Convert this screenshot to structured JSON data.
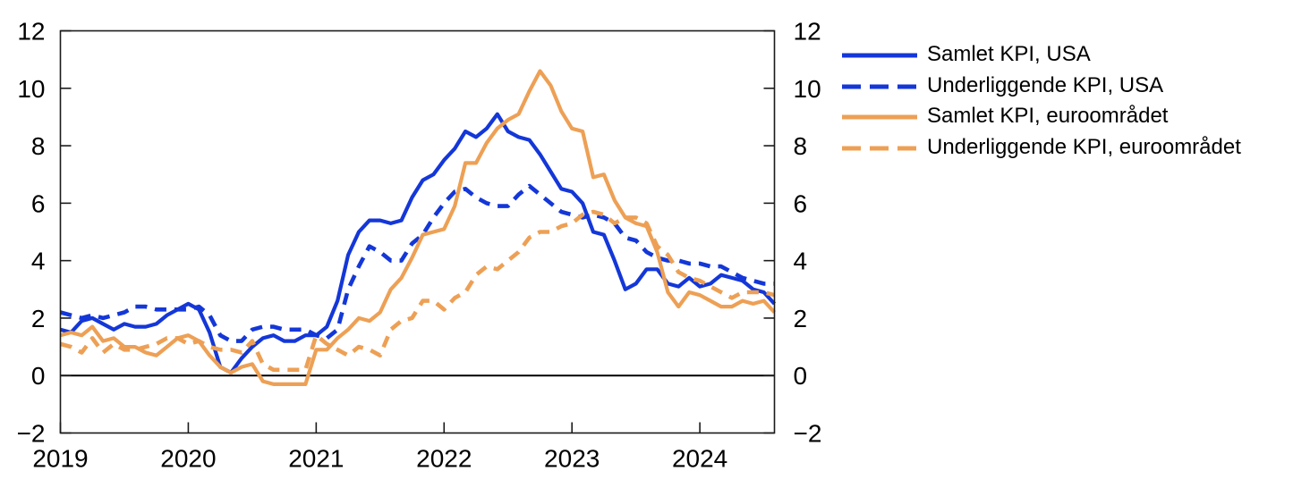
{
  "chart_data": {
    "type": "line",
    "title": "",
    "x_unit": "month",
    "x_start": "2019-01",
    "x_end": "2024-08",
    "x_tick_labels": [
      "2019",
      "2020",
      "2021",
      "2022",
      "2023",
      "2024"
    ],
    "x_tick_months": [
      0,
      12,
      24,
      36,
      48,
      60
    ],
    "ylim": [
      -2,
      12
    ],
    "y_ticks": [
      -2,
      0,
      2,
      4,
      6,
      8,
      10,
      12
    ],
    "y_axis_sides": [
      "left",
      "right"
    ],
    "zero_line": true,
    "grid": false,
    "legend_position": "right",
    "axis_color": "#1a1a1a",
    "text_color": "#000000",
    "series": [
      {
        "name": "Samlet KPI, USA",
        "color": "#1437d8",
        "dash": false,
        "values": [
          1.6,
          1.5,
          1.9,
          2.0,
          1.8,
          1.6,
          1.8,
          1.7,
          1.7,
          1.8,
          2.1,
          2.3,
          2.5,
          2.3,
          1.5,
          0.3,
          0.1,
          0.6,
          1.0,
          1.3,
          1.4,
          1.2,
          1.2,
          1.4,
          1.4,
          1.7,
          2.6,
          4.2,
          5.0,
          5.4,
          5.4,
          5.3,
          5.4,
          6.2,
          6.8,
          7.0,
          7.5,
          7.9,
          8.5,
          8.3,
          8.6,
          9.1,
          8.5,
          8.3,
          8.2,
          7.7,
          7.1,
          6.5,
          6.4,
          6.0,
          5.0,
          4.9,
          4.0,
          3.0,
          3.2,
          3.7,
          3.7,
          3.2,
          3.1,
          3.4,
          3.1,
          3.2,
          3.5,
          3.4,
          3.3,
          3.0,
          2.9,
          2.5
        ]
      },
      {
        "name": "Underliggende KPI, USA",
        "color": "#1437d8",
        "dash": true,
        "values": [
          2.2,
          2.1,
          2.0,
          2.1,
          2.0,
          2.1,
          2.2,
          2.4,
          2.4,
          2.3,
          2.3,
          2.3,
          2.3,
          2.4,
          2.1,
          1.4,
          1.2,
          1.2,
          1.6,
          1.7,
          1.7,
          1.6,
          1.6,
          1.6,
          1.4,
          1.3,
          1.6,
          3.0,
          3.8,
          4.5,
          4.3,
          4.0,
          4.0,
          4.6,
          4.9,
          5.5,
          6.0,
          6.4,
          6.5,
          6.2,
          6.0,
          5.9,
          5.9,
          6.3,
          6.6,
          6.3,
          6.0,
          5.7,
          5.6,
          5.5,
          5.6,
          5.5,
          5.3,
          4.8,
          4.7,
          4.3,
          4.1,
          4.0,
          4.0,
          3.9,
          3.9,
          3.8,
          3.8,
          3.6,
          3.4,
          3.3,
          3.2,
          3.2
        ]
      },
      {
        "name": "Samlet KPI, euroområdet",
        "color": "#eda055",
        "dash": false,
        "values": [
          1.4,
          1.5,
          1.4,
          1.7,
          1.2,
          1.3,
          1.0,
          1.0,
          0.8,
          0.7,
          1.0,
          1.3,
          1.4,
          1.2,
          0.7,
          0.3,
          0.1,
          0.3,
          0.4,
          -0.2,
          -0.3,
          -0.3,
          -0.3,
          -0.3,
          0.9,
          0.9,
          1.3,
          1.6,
          2.0,
          1.9,
          2.2,
          3.0,
          3.4,
          4.1,
          4.9,
          5.0,
          5.1,
          5.9,
          7.4,
          7.4,
          8.1,
          8.6,
          8.9,
          9.1,
          9.9,
          10.6,
          10.1,
          9.2,
          8.6,
          8.5,
          6.9,
          7.0,
          6.1,
          5.5,
          5.3,
          5.2,
          4.3,
          2.9,
          2.4,
          2.9,
          2.8,
          2.6,
          2.4,
          2.4,
          2.6,
          2.5,
          2.6,
          2.2
        ]
      },
      {
        "name": "Underliggende KPI, euroområdet",
        "color": "#eda055",
        "dash": true,
        "values": [
          1.1,
          1.0,
          0.8,
          1.3,
          0.8,
          1.1,
          0.9,
          0.9,
          1.0,
          1.1,
          1.3,
          1.3,
          1.1,
          1.2,
          1.0,
          0.9,
          0.9,
          0.8,
          1.2,
          0.4,
          0.2,
          0.2,
          0.2,
          0.2,
          1.4,
          1.1,
          0.9,
          0.7,
          1.0,
          0.9,
          0.7,
          1.6,
          1.9,
          2.0,
          2.6,
          2.6,
          2.3,
          2.7,
          2.9,
          3.5,
          3.8,
          3.7,
          4.0,
          4.3,
          4.8,
          5.0,
          5.0,
          5.2,
          5.3,
          5.6,
          5.7,
          5.6,
          5.3,
          5.5,
          5.5,
          5.3,
          4.5,
          4.2,
          3.6,
          3.4,
          3.3,
          3.1,
          2.9,
          2.7,
          2.9,
          2.9,
          2.9,
          2.8
        ]
      }
    ]
  }
}
